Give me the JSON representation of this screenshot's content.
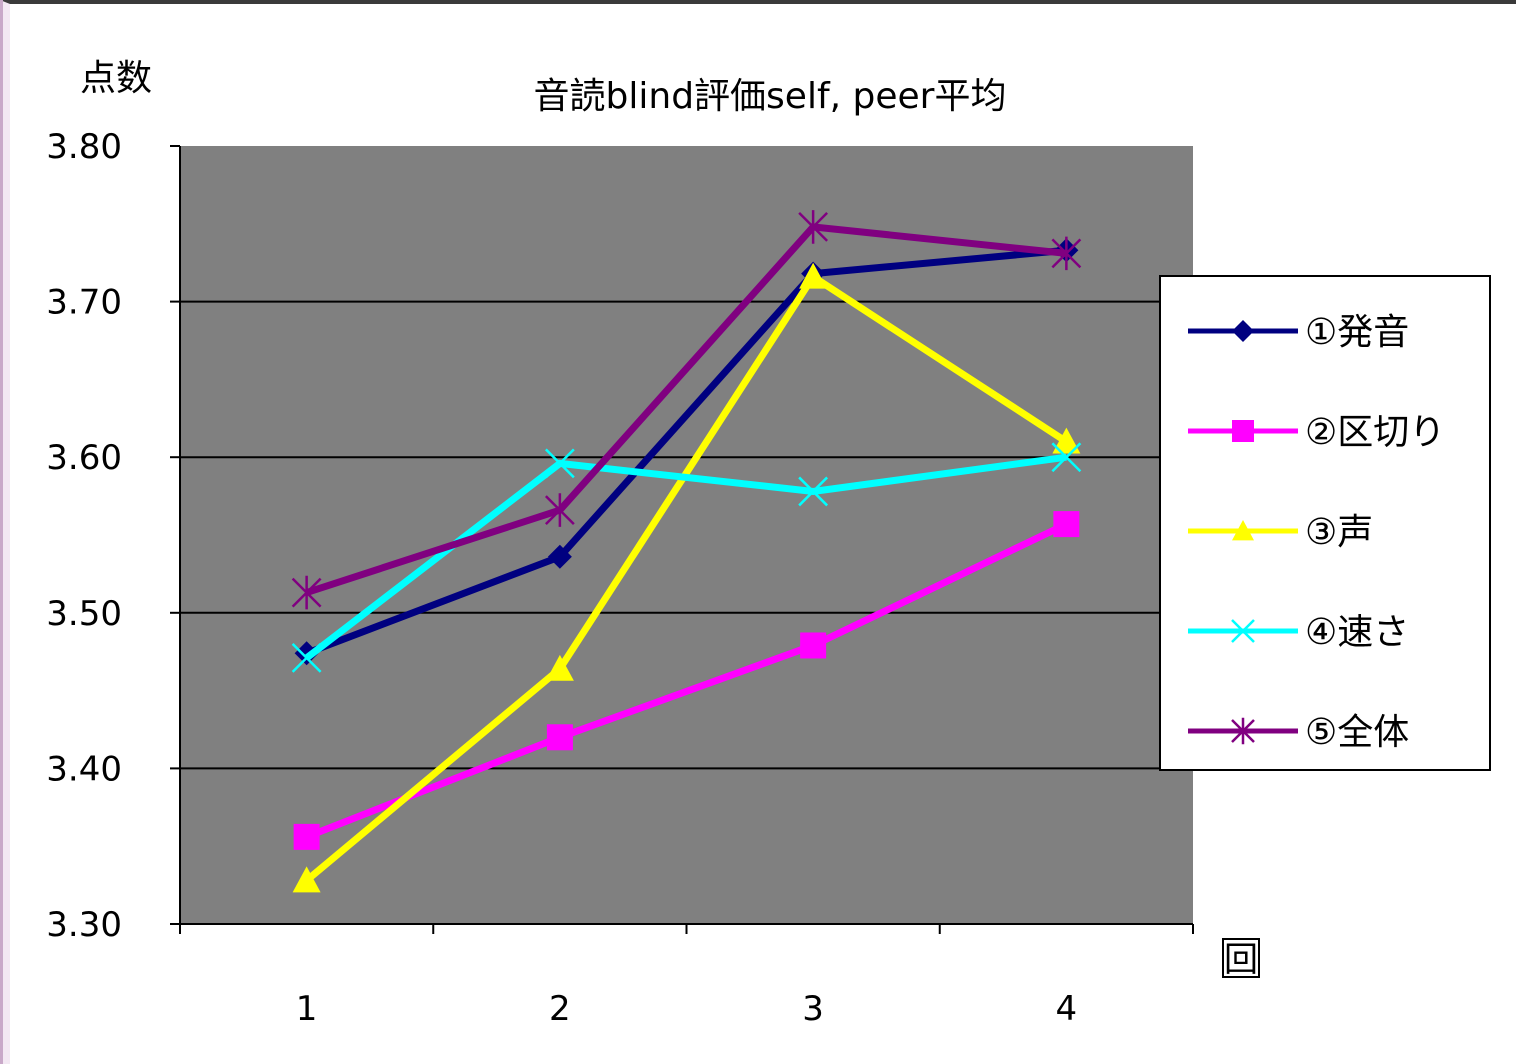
{
  "chart_data": {
    "type": "line",
    "title": "音読blind評価self, peer平均",
    "ylabel": "点数",
    "xlabel": "回",
    "categories": [
      "1",
      "2",
      "3",
      "4"
    ],
    "ylim": [
      3.3,
      3.8
    ],
    "yticks": [
      "3.30",
      "3.40",
      "3.50",
      "3.60",
      "3.70",
      "3.80"
    ],
    "grid": true,
    "plot_background": "#808080",
    "legend_position": "right",
    "series": [
      {
        "name": "①発音",
        "color": "#000080",
        "marker": "diamond",
        "values": [
          3.474,
          3.536,
          3.718,
          3.733
        ]
      },
      {
        "name": "②区切り",
        "color": "#ff00ff",
        "marker": "square",
        "values": [
          3.356,
          3.42,
          3.479,
          3.557
        ]
      },
      {
        "name": "③声",
        "color": "#ffff00",
        "marker": "triangle",
        "values": [
          3.328,
          3.464,
          3.716,
          3.61
        ]
      },
      {
        "name": "④速さ",
        "color": "#00ffff",
        "marker": "x",
        "values": [
          3.471,
          3.596,
          3.578,
          3.6
        ]
      },
      {
        "name": "⑤全体",
        "color": "#800080",
        "marker": "star",
        "values": [
          3.513,
          3.566,
          3.748,
          3.731
        ]
      }
    ]
  }
}
